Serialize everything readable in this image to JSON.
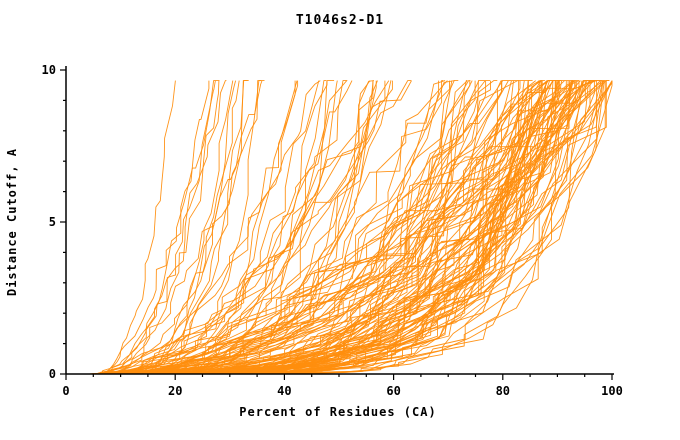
{
  "chart_data": {
    "type": "line",
    "title": "T1046s2-D1",
    "xlabel": "Percent of Residues (CA)",
    "ylabel": "Distance Cutoff, A",
    "xlim": [
      0,
      100
    ],
    "ylim": [
      0,
      10
    ],
    "x_ticks": [
      0,
      20,
      40,
      60,
      80,
      100
    ],
    "y_ticks": [
      0,
      5,
      10
    ],
    "x_minor_step": 5,
    "y_minor_step": 1,
    "grid": false,
    "legend": "none",
    "line_color": "#ff8e0e",
    "axis_color": "#000000",
    "background_color": "#ffffff",
    "ensemble": {
      "description": "Cumulative CA distance-cutoff curves (one per predicted model), monotonically increasing from ~(5,0) to the top of the plot near y=9.7; densest bundle sweeps up through the right third of the plot.",
      "num_curves": 150,
      "seed": 1046,
      "x_start_min": 4.0,
      "x_start_max": 7.5,
      "y_top": 9.65,
      "points_per_curve": 26,
      "jitter": 0.14,
      "exponent_min": 1.5,
      "exponent_max": 7.0,
      "end_x_groups": [
        {
          "weight": 0.42,
          "min": 86,
          "max": 100
        },
        {
          "weight": 0.3,
          "min": 55,
          "max": 88
        },
        {
          "weight": 0.2,
          "min": 30,
          "max": 58
        },
        {
          "weight": 0.08,
          "min": 18,
          "max": 34
        }
      ]
    }
  },
  "layout_note": "single orange multi-line plot, black L-shaped axes, outward ticks"
}
